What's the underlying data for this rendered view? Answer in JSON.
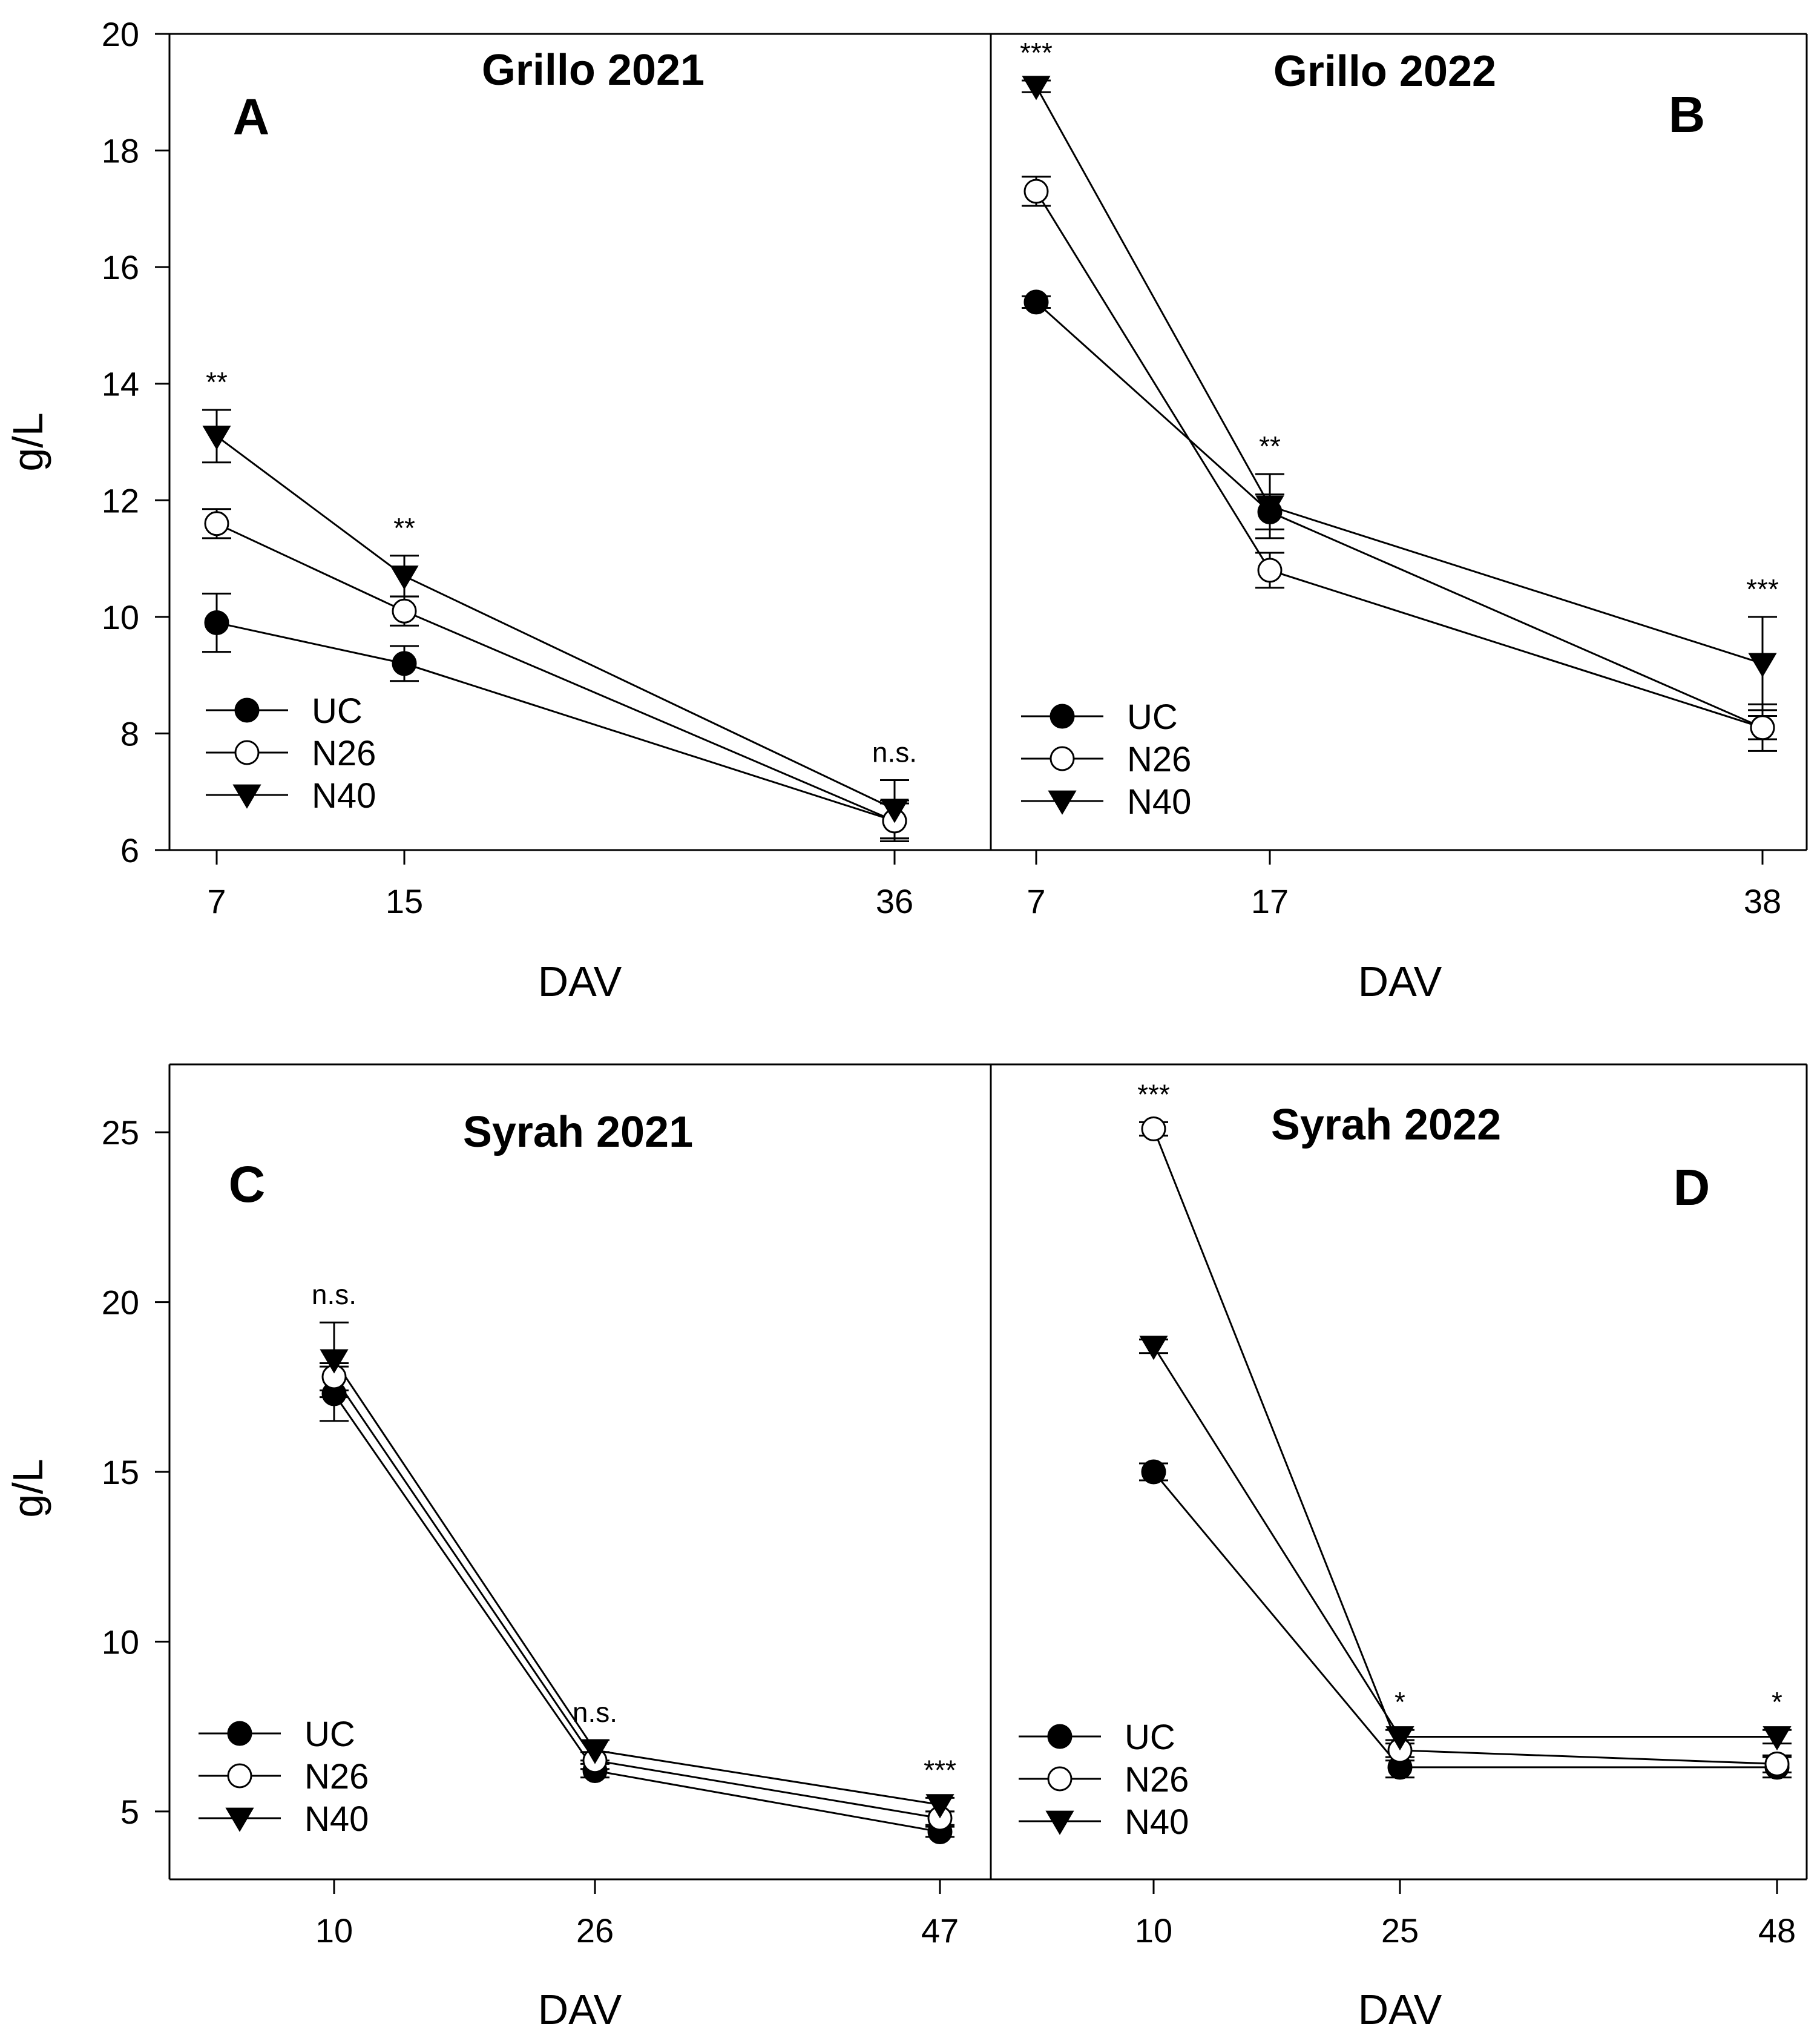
{
  "chart_data": [
    {
      "type": "line",
      "panel": "A",
      "title": "Grillo 2021",
      "xlabel": "DAV",
      "ylabel": "g/L",
      "ylim": [
        6,
        20
      ],
      "yticks": [
        6,
        8,
        10,
        12,
        14,
        16,
        18,
        20
      ],
      "x": [
        7,
        15,
        36
      ],
      "series": [
        {
          "name": "UC",
          "marker": "filled-circle",
          "values": [
            9.9,
            9.2,
            6.5
          ],
          "errors": [
            0.5,
            0.3,
            0.35
          ]
        },
        {
          "name": "N26",
          "marker": "open-circle",
          "values": [
            11.6,
            10.1,
            6.5
          ],
          "errors": [
            0.25,
            0.25,
            0.3
          ]
        },
        {
          "name": "N40",
          "marker": "filled-triangle-down",
          "values": [
            13.1,
            10.7,
            6.7
          ],
          "errors": [
            0.45,
            0.35,
            0.5
          ]
        }
      ],
      "significance": [
        "**",
        "**",
        "n.s."
      ],
      "legend": {
        "position": "bottom-left",
        "entries": [
          "UC",
          "N26",
          "N40"
        ]
      }
    },
    {
      "type": "line",
      "panel": "B",
      "title": "Grillo 2022",
      "xlabel": "DAV",
      "ylabel": "",
      "ylim": [
        6,
        20
      ],
      "x": [
        7,
        17,
        38
      ],
      "series": [
        {
          "name": "UC",
          "marker": "filled-circle",
          "values": [
            15.4,
            11.8,
            8.1
          ],
          "errors": [
            0.1,
            0.3,
            0.2
          ]
        },
        {
          "name": "N26",
          "marker": "open-circle",
          "values": [
            17.3,
            10.8,
            8.1
          ],
          "errors": [
            0.25,
            0.3,
            0.4
          ]
        },
        {
          "name": "N40",
          "marker": "filled-triangle-down",
          "values": [
            19.1,
            11.9,
            9.2
          ],
          "errors": [
            0.1,
            0.55,
            0.8
          ]
        }
      ],
      "significance": [
        "***",
        "**",
        "***"
      ],
      "legend": {
        "position": "bottom-left",
        "entries": [
          "UC",
          "N26",
          "N40"
        ]
      }
    },
    {
      "type": "line",
      "panel": "C",
      "title": "Syrah 2021",
      "xlabel": "DAV",
      "ylabel": "g/L",
      "ylim": [
        3,
        27
      ],
      "yticks": [
        5,
        10,
        15,
        20,
        25
      ],
      "x": [
        10,
        26,
        47
      ],
      "series": [
        {
          "name": "UC",
          "marker": "filled-circle",
          "values": [
            17.3,
            6.2,
            4.4
          ],
          "errors": [
            0.8,
            0.2,
            0.15
          ]
        },
        {
          "name": "N26",
          "marker": "open-circle",
          "values": [
            17.8,
            6.5,
            4.8
          ],
          "errors": [
            0.4,
            0.25,
            0.2
          ]
        },
        {
          "name": "N40",
          "marker": "filled-triangle-down",
          "values": [
            18.3,
            6.8,
            5.2
          ],
          "errors": [
            1.1,
            0.3,
            0.2
          ]
        }
      ],
      "significance": [
        "n.s.",
        "n.s.",
        "***"
      ],
      "legend": {
        "position": "bottom-left",
        "entries": [
          "UC",
          "N26",
          "N40"
        ]
      }
    },
    {
      "type": "line",
      "panel": "D",
      "title": "Syrah 2022",
      "xlabel": "DAV",
      "ylabel": "",
      "ylim": [
        3,
        27
      ],
      "x": [
        10,
        25,
        48
      ],
      "series": [
        {
          "name": "UC",
          "marker": "filled-circle",
          "values": [
            15.0,
            6.3,
            6.3
          ],
          "errors": [
            0.25,
            0.3,
            0.3
          ]
        },
        {
          "name": "N26",
          "marker": "open-circle",
          "values": [
            25.1,
            6.8,
            6.4
          ],
          "errors": [
            0.2,
            0.3,
            0.25
          ]
        },
        {
          "name": "N40",
          "marker": "filled-triangle-down",
          "values": [
            18.7,
            7.2,
            7.2
          ],
          "errors": [
            0.2,
            0.2,
            0.2
          ]
        }
      ],
      "significance": [
        "***",
        "*",
        "*"
      ],
      "legend": {
        "position": "bottom-left",
        "entries": [
          "UC",
          "N26",
          "N40"
        ]
      }
    }
  ]
}
